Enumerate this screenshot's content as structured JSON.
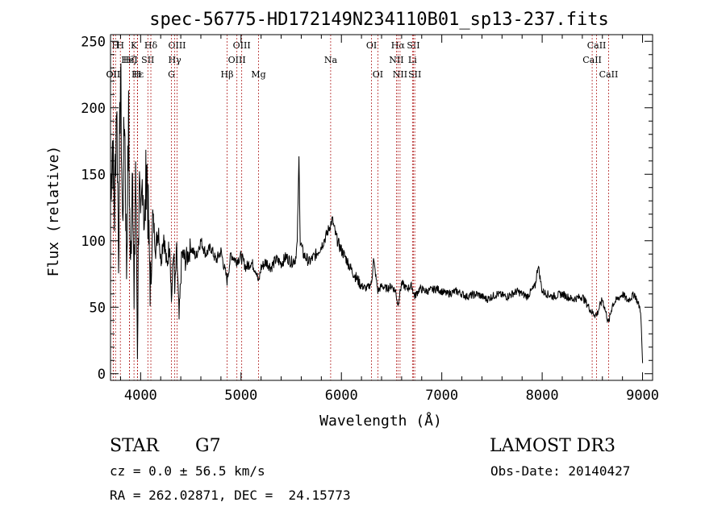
{
  "chart_data": {
    "type": "line",
    "title": "spec-56775-HD172149N234110B01_sp13-237.fits",
    "xlabel": "Wavelength (Å)",
    "ylabel": "Flux (relative)",
    "xlim": [
      3700,
      9100
    ],
    "ylim": [
      -5,
      255
    ],
    "x_ticks": [
      4000,
      5000,
      6000,
      7000,
      8000,
      9000
    ],
    "x_tick_labels": [
      "4000",
      "5000",
      "6000",
      "7000",
      "8000",
      "9000"
    ],
    "y_ticks": [
      0,
      50,
      100,
      150,
      200,
      250
    ],
    "y_tick_labels": [
      "0",
      "50",
      "100",
      "150",
      "200",
      "250"
    ],
    "line_color": "#000000",
    "marker_color": "#b22222",
    "spectrum": [
      [
        3700,
        140
      ],
      [
        3720,
        175
      ],
      [
        3740,
        120
      ],
      [
        3760,
        210
      ],
      [
        3780,
        95
      ],
      [
        3800,
        230
      ],
      [
        3820,
        110
      ],
      [
        3840,
        200
      ],
      [
        3860,
        80
      ],
      [
        3880,
        190
      ],
      [
        3900,
        70
      ],
      [
        3920,
        175
      ],
      [
        3935,
        40
      ],
      [
        3950,
        160
      ],
      [
        3968,
        25
      ],
      [
        3985,
        150
      ],
      [
        4000,
        95
      ],
      [
        4020,
        155
      ],
      [
        4040,
        105
      ],
      [
        4060,
        165
      ],
      [
        4080,
        100
      ],
      [
        4102,
        60
      ],
      [
        4120,
        120
      ],
      [
        4150,
        95
      ],
      [
        4180,
        110
      ],
      [
        4200,
        85
      ],
      [
        4230,
        105
      ],
      [
        4260,
        80
      ],
      [
        4290,
        100
      ],
      [
        4307,
        55
      ],
      [
        4330,
        95
      ],
      [
        4340,
        60
      ],
      [
        4360,
        92
      ],
      [
        4383,
        40
      ],
      [
        4410,
        90
      ],
      [
        4450,
        85
      ],
      [
        4500,
        95
      ],
      [
        4550,
        88
      ],
      [
        4600,
        100
      ],
      [
        4650,
        90
      ],
      [
        4700,
        95
      ],
      [
        4750,
        85
      ],
      [
        4800,
        92
      ],
      [
        4861,
        70
      ],
      [
        4900,
        90
      ],
      [
        4950,
        85
      ],
      [
        5000,
        88
      ],
      [
        5050,
        80
      ],
      [
        5100,
        84
      ],
      [
        5150,
        78
      ],
      [
        5175,
        68
      ],
      [
        5200,
        80
      ],
      [
        5250,
        84
      ],
      [
        5300,
        80
      ],
      [
        5350,
        86
      ],
      [
        5400,
        83
      ],
      [
        5450,
        88
      ],
      [
        5500,
        84
      ],
      [
        5540,
        86
      ],
      [
        5560,
        98
      ],
      [
        5577,
        162
      ],
      [
        5590,
        100
      ],
      [
        5620,
        90
      ],
      [
        5680,
        84
      ],
      [
        5750,
        90
      ],
      [
        5800,
        96
      ],
      [
        5850,
        104
      ],
      [
        5890,
        112
      ],
      [
        5910,
        116
      ],
      [
        5940,
        105
      ],
      [
        5980,
        96
      ],
      [
        6050,
        86
      ],
      [
        6100,
        78
      ],
      [
        6150,
        72
      ],
      [
        6200,
        66
      ],
      [
        6250,
        64
      ],
      [
        6300,
        68
      ],
      [
        6320,
        86
      ],
      [
        6363,
        62
      ],
      [
        6400,
        66
      ],
      [
        6450,
        64
      ],
      [
        6500,
        66
      ],
      [
        6540,
        62
      ],
      [
        6563,
        52
      ],
      [
        6600,
        68
      ],
      [
        6650,
        64
      ],
      [
        6700,
        66
      ],
      [
        6730,
        58
      ],
      [
        6780,
        64
      ],
      [
        6850,
        62
      ],
      [
        6950,
        64
      ],
      [
        7050,
        60
      ],
      [
        7150,
        62
      ],
      [
        7250,
        58
      ],
      [
        7350,
        60
      ],
      [
        7450,
        56
      ],
      [
        7550,
        60
      ],
      [
        7650,
        58
      ],
      [
        7750,
        62
      ],
      [
        7850,
        58
      ],
      [
        7930,
        66
      ],
      [
        7960,
        82
      ],
      [
        8000,
        62
      ],
      [
        8100,
        58
      ],
      [
        8200,
        60
      ],
      [
        8300,
        56
      ],
      [
        8400,
        58
      ],
      [
        8498,
        46
      ],
      [
        8542,
        44
      ],
      [
        8600,
        56
      ],
      [
        8662,
        38
      ],
      [
        8700,
        52
      ],
      [
        8800,
        60
      ],
      [
        8850,
        55
      ],
      [
        8920,
        60
      ],
      [
        8980,
        48
      ],
      [
        9000,
        8
      ]
    ],
    "line_markers": [
      {
        "label": "OII",
        "wavelength": 3727,
        "row": 2
      },
      {
        "label": "H",
        "wavelength": 3750,
        "row": 0
      },
      {
        "label": "OII",
        "wavelength": 3727,
        "row": 3
      },
      {
        "label": "H",
        "wavelength": 3798,
        "row": 0
      },
      {
        "label": "Hζ",
        "wavelength": 3889,
        "row": 1
      },
      {
        "label": "K",
        "wavelength": 3934,
        "row": 0
      },
      {
        "label": "HeI",
        "wavelength": 3889,
        "row": 1
      },
      {
        "label": "Hε",
        "wavelength": 3970,
        "row": 3
      },
      {
        "label": "H",
        "wavelength": 3968,
        "row": 3
      },
      {
        "label": "SII",
        "wavelength": 4072,
        "row": 1
      },
      {
        "label": "Hδ",
        "wavelength": 4102,
        "row": 0
      },
      {
        "label": "OIII",
        "wavelength": 4363,
        "row": 0
      },
      {
        "label": "Hγ",
        "wavelength": 4340,
        "row": 1
      },
      {
        "label": "G",
        "wavelength": 4307,
        "row": 2
      },
      {
        "label": "Hβ",
        "wavelength": 4861,
        "row": 2
      },
      {
        "label": "OIII",
        "wavelength": 5007,
        "row": 0
      },
      {
        "label": "OIII",
        "wavelength": 4959,
        "row": 1
      },
      {
        "label": "Mg",
        "wavelength": 5175,
        "row": 2
      },
      {
        "label": "Na",
        "wavelength": 5893,
        "row": 1
      },
      {
        "label": "OI",
        "wavelength": 6300,
        "row": 0
      },
      {
        "label": "OI",
        "wavelength": 6363,
        "row": 2
      },
      {
        "label": "Hα",
        "wavelength": 6563,
        "row": 0
      },
      {
        "label": "NII",
        "wavelength": 6548,
        "row": 1
      },
      {
        "label": "NII",
        "wavelength": 6584,
        "row": 2
      },
      {
        "label": "SII",
        "wavelength": 6717,
        "row": 0
      },
      {
        "label": "Li",
        "wavelength": 6708,
        "row": 1
      },
      {
        "label": "SII",
        "wavelength": 6731,
        "row": 2
      },
      {
        "label": "CaII",
        "wavelength": 8542,
        "row": 0
      },
      {
        "label": "CaII",
        "wavelength": 8498,
        "row": 1
      },
      {
        "label": "CaII",
        "wavelength": 8662,
        "row": 2
      }
    ]
  },
  "info": {
    "object_type": "STAR",
    "subclass": "G7",
    "survey": "LAMOST DR3",
    "cz": "cz = 0.0 ± 56.5 km/s",
    "obs_date": "Obs-Date: 20140427",
    "coords": "RA = 262.02871, DEC =  24.15773"
  }
}
